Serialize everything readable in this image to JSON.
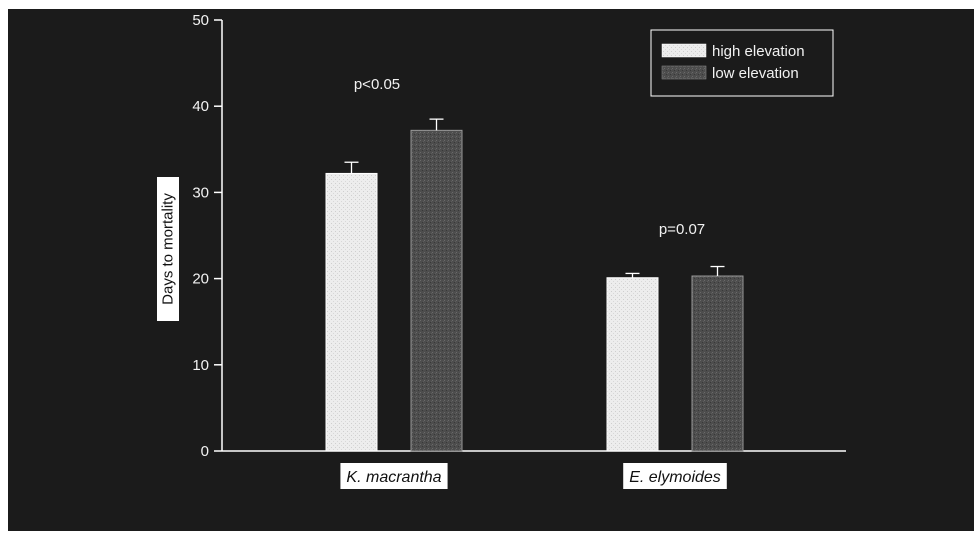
{
  "chart_data": {
    "type": "bar",
    "categories": [
      "K. macrantha",
      "E. elymoides"
    ],
    "series": [
      {
        "name": "high elevation",
        "values": [
          32.2,
          20.1
        ],
        "errors": [
          1.3,
          0.5
        ],
        "color": "#ffffff"
      },
      {
        "name": "low elevation",
        "values": [
          37.2,
          20.3
        ],
        "errors": [
          1.3,
          1.1
        ],
        "color": "#4a4a4a"
      }
    ],
    "annotations": [
      "p<0.05",
      "p=0.07"
    ],
    "title": "",
    "xlabel": "",
    "ylabel": "Days to mortality",
    "ylim": [
      0,
      50
    ],
    "yticks": [
      "0",
      "10",
      "20",
      "30",
      "40",
      "50"
    ],
    "grid": false,
    "legend_position": "top-right",
    "background": "#1b1b1b",
    "axis_color": "#ffffff"
  }
}
